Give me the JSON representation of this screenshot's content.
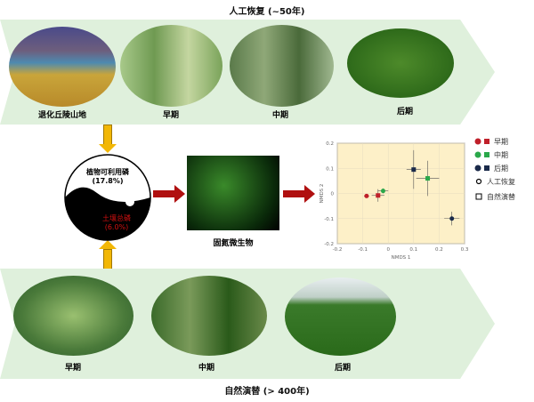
{
  "top": {
    "title": "人工恢复 (~50年)",
    "stages": [
      "退化丘陵山地",
      "早期",
      "中期",
      "后期"
    ]
  },
  "bottom": {
    "title": "自然演替 (> 400年)",
    "stages": [
      "早期",
      "中期",
      "后期"
    ]
  },
  "yinyang": {
    "top_text": "植物可利用磷",
    "top_value": "(17.8%)",
    "bottom_text": "土壤总磷",
    "bottom_value": "(6.0%)"
  },
  "microbe": {
    "label": "固氮微生物"
  },
  "colors": {
    "panel": "#dff0dc",
    "arrow_red": "#b01010",
    "arrow_yellow": "#f2b705",
    "plot_bg": "#fdf0c8"
  },
  "chart_data": {
    "type": "scatter",
    "xlabel": "NMDS 1",
    "ylabel": "NMDS 2",
    "xlim": [
      -0.2,
      0.3
    ],
    "ylim": [
      -0.2,
      0.2
    ],
    "xticks": [
      "-0.2",
      "-0.1",
      "0",
      "0.1",
      "0.2",
      "0.3"
    ],
    "yticks": [
      "0.2",
      "0.1",
      "0",
      "-0.1",
      "-0.2"
    ],
    "points": [
      {
        "stage": "早期",
        "shape": "circle",
        "color": "#c0202a",
        "x": -0.085,
        "y": -0.01,
        "xerr": 0.01,
        "yerr": 0.005
      },
      {
        "stage": "早期",
        "shape": "square",
        "color": "#c0202a",
        "x": -0.04,
        "y": -0.008,
        "xerr": 0.025,
        "yerr": 0.025
      },
      {
        "stage": "中期",
        "shape": "circle",
        "color": "#2aa84a",
        "x": -0.02,
        "y": 0.01,
        "xerr": 0.02,
        "yerr": 0.01
      },
      {
        "stage": "中期",
        "shape": "square",
        "color": "#2aa84a",
        "x": 0.155,
        "y": 0.06,
        "xerr": 0.045,
        "yerr": 0.07
      },
      {
        "stage": "后期",
        "shape": "square",
        "color": "#1a2a4a",
        "x": 0.1,
        "y": 0.095,
        "xerr": 0.028,
        "yerr": 0.077
      },
      {
        "stage": "后期",
        "shape": "circle",
        "color": "#1a2a4a",
        "x": 0.25,
        "y": -0.1,
        "xerr": 0.03,
        "yerr": 0.027
      }
    ],
    "legend": [
      {
        "label": "早期",
        "color": "#c0202a"
      },
      {
        "label": "中期",
        "color": "#2aa84a"
      },
      {
        "label": "后期",
        "color": "#1a2a4a"
      }
    ],
    "shape_legend": [
      {
        "shape": "circle",
        "label": "人工恢复"
      },
      {
        "shape": "square",
        "label": "自然演替"
      }
    ]
  }
}
